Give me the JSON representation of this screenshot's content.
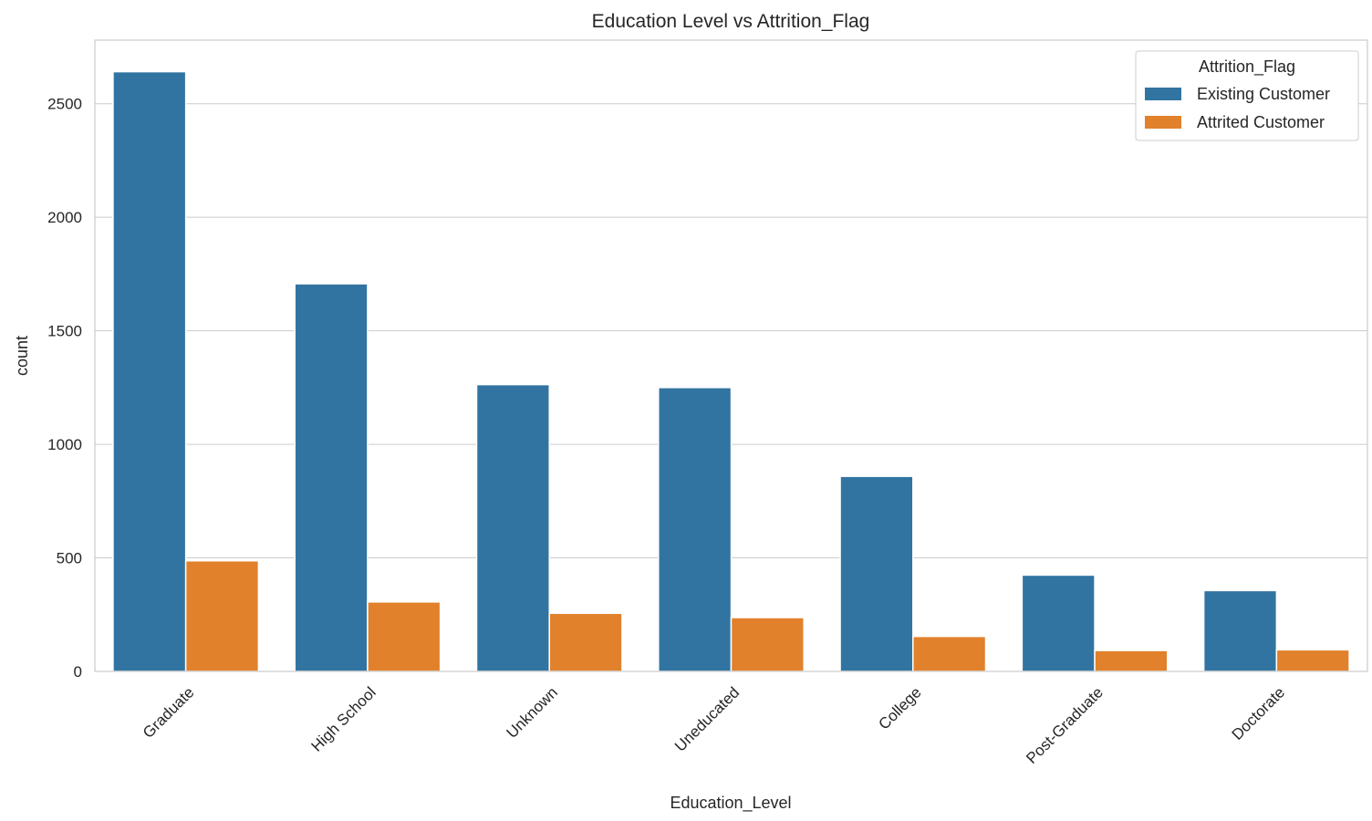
{
  "chart_data": {
    "type": "bar",
    "title": "Education Level vs Attrition_Flag",
    "xlabel": "Education_Level",
    "ylabel": "count",
    "ylim": [
      0,
      2780
    ],
    "yticks": [
      0,
      500,
      1000,
      1500,
      2000,
      2500
    ],
    "grid": "horizontal",
    "legend_position": "top-right",
    "legend_title": "Attrition_Flag",
    "categories": [
      "Graduate",
      "High School",
      "Unknown",
      "Uneducated",
      "College",
      "Post-Graduate",
      "Doctorate"
    ],
    "series": [
      {
        "name": "Existing Customer",
        "color": "#3274a1",
        "values": [
          2641,
          1707,
          1263,
          1250,
          859,
          424,
          356
        ]
      },
      {
        "name": "Attrited Customer",
        "color": "#e1812c",
        "values": [
          487,
          306,
          256,
          237,
          154,
          92,
          95
        ]
      }
    ]
  }
}
